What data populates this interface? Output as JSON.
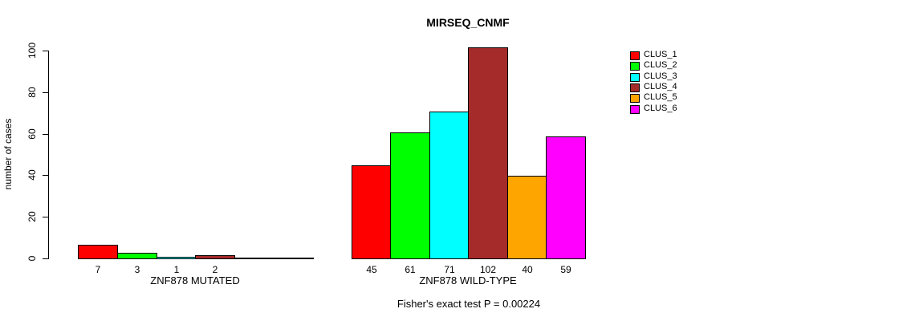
{
  "chart_data": {
    "type": "bar",
    "title": "MIRSEQ_CNMF",
    "ylabel": "number of cases",
    "ylim": [
      0,
      100
    ],
    "yticks": [
      0,
      20,
      40,
      60,
      80,
      100
    ],
    "grid": false,
    "legend_position": "right",
    "axis_color": "#000000",
    "background_color": "#ffffff",
    "clusters": [
      "CLUS_1",
      "CLUS_2",
      "CLUS_3",
      "CLUS_4",
      "CLUS_5",
      "CLUS_6"
    ],
    "cluster_colors": [
      "#ff0000",
      "#00ff00",
      "#00ffff",
      "#a52a2a",
      "#ffa500",
      "#ff00ff"
    ],
    "groups": [
      {
        "label": "ZNF878 MUTATED",
        "values": [
          7,
          3,
          1,
          2,
          0,
          0
        ]
      },
      {
        "label": "ZNF878 WILD-TYPE",
        "values": [
          45,
          61,
          71,
          102,
          40,
          59
        ]
      }
    ],
    "annotation": "Fisher's exact test P = 0.00224"
  }
}
